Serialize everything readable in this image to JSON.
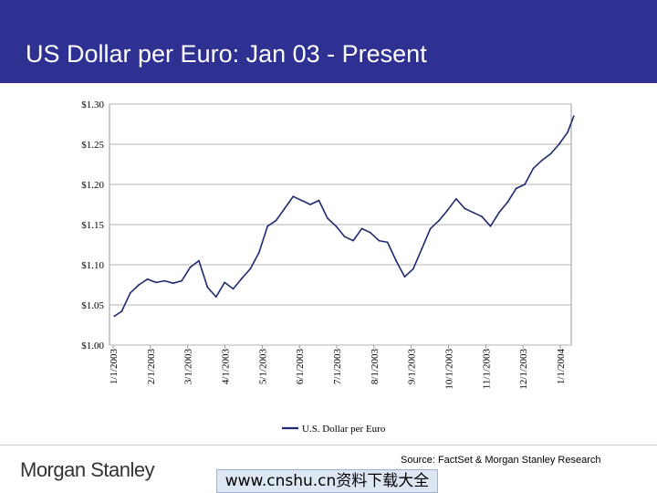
{
  "slide": {
    "title": "US Dollar per Euro: Jan 03 - Present",
    "logo_text": "Morgan Stanley",
    "source": "Source: FactSet & Morgan Stanley Research",
    "watermark": "www.cnshu.cn资料下载大全",
    "colors": {
      "title_bar": "#2e3192",
      "line": "#1f2a6e"
    }
  },
  "chart_data": {
    "type": "line",
    "title": "",
    "xlabel": "",
    "ylabel": "",
    "ylim": [
      1.0,
      1.3
    ],
    "y_ticks": [
      1.0,
      1.05,
      1.1,
      1.15,
      1.2,
      1.25,
      1.3
    ],
    "y_tick_labels": [
      "$1.00",
      "$1.05",
      "$1.10",
      "$1.15",
      "$1.20",
      "$1.25",
      "$1.30"
    ],
    "x_tick_labels": [
      "1/1/2003",
      "2/1/2003",
      "3/1/2003",
      "4/1/2003",
      "5/1/2003",
      "6/1/2003",
      "7/1/2003",
      "8/1/2003",
      "9/1/2003",
      "10/1/2003",
      "11/1/2003",
      "12/1/2003",
      "1/1/2004"
    ],
    "grid": "horizontal",
    "legend": "bottom-center",
    "series": [
      {
        "name": "U.S. Dollar per Euro",
        "x": [
          "2003-01-02",
          "2003-01-08",
          "2003-01-15",
          "2003-01-22",
          "2003-01-29",
          "2003-02-05",
          "2003-02-12",
          "2003-02-19",
          "2003-02-26",
          "2003-03-05",
          "2003-03-12",
          "2003-03-19",
          "2003-03-26",
          "2003-04-02",
          "2003-04-09",
          "2003-04-16",
          "2003-04-23",
          "2003-04-30",
          "2003-05-07",
          "2003-05-14",
          "2003-05-21",
          "2003-05-28",
          "2003-06-04",
          "2003-06-11",
          "2003-06-18",
          "2003-06-25",
          "2003-07-02",
          "2003-07-09",
          "2003-07-16",
          "2003-07-23",
          "2003-07-30",
          "2003-08-06",
          "2003-08-13",
          "2003-08-20",
          "2003-08-27",
          "2003-09-03",
          "2003-09-10",
          "2003-09-17",
          "2003-09-24",
          "2003-10-01",
          "2003-10-08",
          "2003-10-15",
          "2003-10-22",
          "2003-10-29",
          "2003-11-05",
          "2003-11-12",
          "2003-11-19",
          "2003-11-26",
          "2003-12-03",
          "2003-12-10",
          "2003-12-17",
          "2003-12-24",
          "2003-12-31",
          "2004-01-07",
          "2004-01-12"
        ],
        "values": [
          1.036,
          1.042,
          1.065,
          1.075,
          1.082,
          1.078,
          1.08,
          1.077,
          1.08,
          1.097,
          1.105,
          1.072,
          1.06,
          1.078,
          1.07,
          1.083,
          1.095,
          1.115,
          1.148,
          1.155,
          1.17,
          1.185,
          1.18,
          1.175,
          1.18,
          1.158,
          1.148,
          1.135,
          1.13,
          1.145,
          1.14,
          1.13,
          1.128,
          1.105,
          1.085,
          1.095,
          1.12,
          1.145,
          1.155,
          1.168,
          1.182,
          1.17,
          1.165,
          1.16,
          1.148,
          1.165,
          1.178,
          1.195,
          1.2,
          1.22,
          1.23,
          1.238,
          1.25,
          1.265,
          1.285
        ]
      }
    ]
  }
}
